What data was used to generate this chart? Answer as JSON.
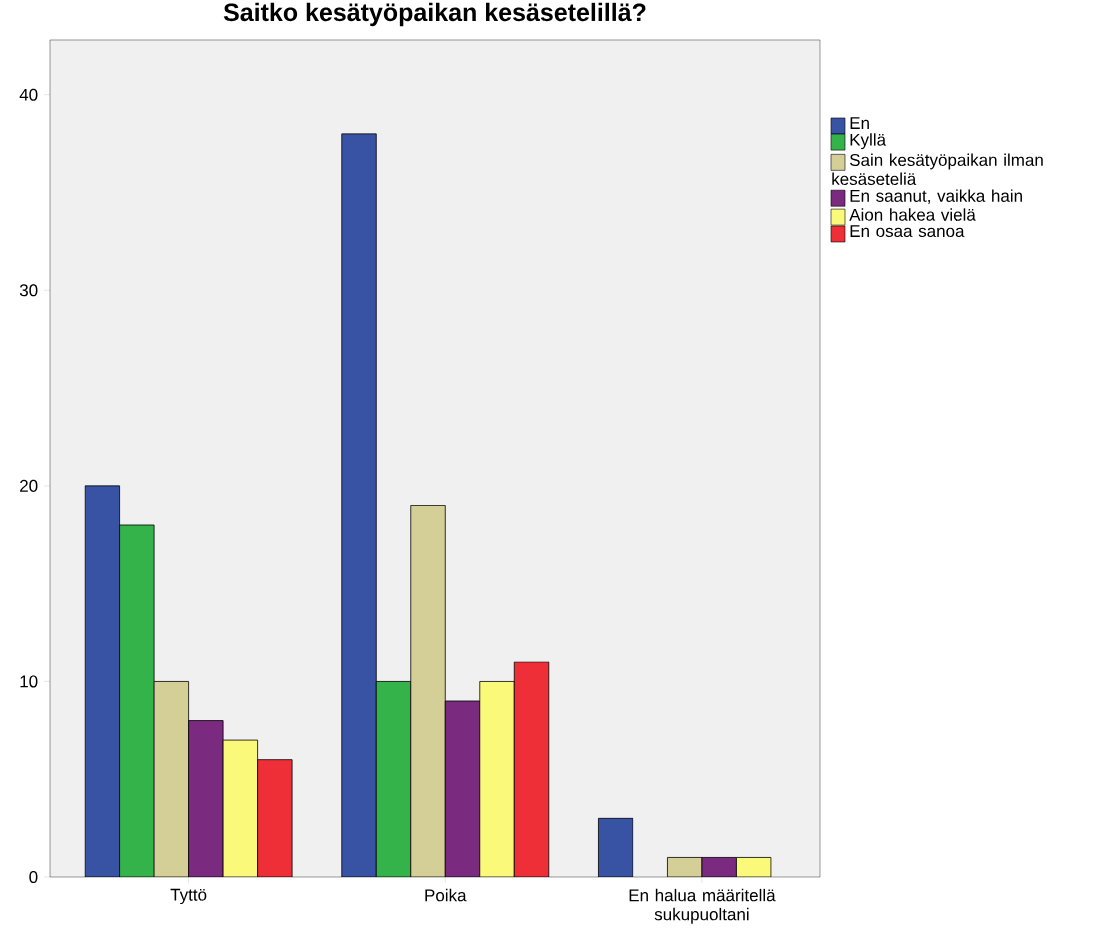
{
  "chart_data": {
    "type": "bar",
    "title": "Saitko kesätyöpaikan kesäsetelillä?",
    "categories": [
      "Tyttö",
      "Poika",
      "En halua määritellä sukupuoltani"
    ],
    "series": [
      {
        "name": "En",
        "color": "#3953a4",
        "values": [
          20,
          38,
          3
        ]
      },
      {
        "name": "Kyllä",
        "color": "#33b34a",
        "values": [
          18,
          10,
          0
        ]
      },
      {
        "name": "Sain kesätyöpaikan ilman kesäseteliä",
        "color": "#d4cf97",
        "values": [
          10,
          19,
          1
        ]
      },
      {
        "name": "En saanut, vaikka hain",
        "color": "#7a2a7f",
        "values": [
          8,
          9,
          1
        ]
      },
      {
        "name": "Aion hakea vielä",
        "color": "#fbf97a",
        "values": [
          7,
          10,
          1
        ]
      },
      {
        "name": "En osaa sanoa",
        "color": "#ee2f37",
        "values": [
          6,
          11,
          0
        ]
      }
    ],
    "ylim": [
      0,
      42.8
    ],
    "yticks": [
      0,
      10,
      20,
      30,
      40
    ],
    "grid": false,
    "legend": "right"
  }
}
